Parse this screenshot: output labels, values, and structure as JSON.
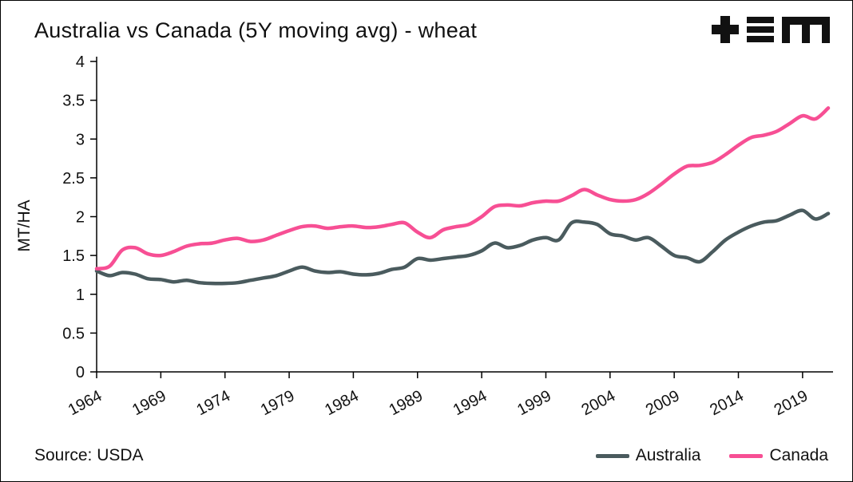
{
  "title": "Australia vs Canada (5Y moving avg) - wheat",
  "source": "Source: USDA",
  "logo_name": "tem-logo",
  "colors": {
    "australia_line": "#4a5b5e",
    "canada_line": "#f74f94",
    "axis": "#000000",
    "background": "#ffffff",
    "logo": "#111111"
  },
  "chart_data": {
    "type": "line",
    "title": "Australia vs Canada (5Y moving avg) - wheat",
    "xlabel": "",
    "ylabel": "MT/HA",
    "ylim": [
      0,
      4
    ],
    "grid": false,
    "legend_position": "bottom-right",
    "x": [
      1964,
      1965,
      1966,
      1967,
      1968,
      1969,
      1970,
      1971,
      1972,
      1973,
      1974,
      1975,
      1976,
      1977,
      1978,
      1979,
      1980,
      1981,
      1982,
      1983,
      1984,
      1985,
      1986,
      1987,
      1988,
      1989,
      1990,
      1991,
      1992,
      1993,
      1994,
      1995,
      1996,
      1997,
      1998,
      1999,
      2000,
      2001,
      2002,
      2003,
      2004,
      2005,
      2006,
      2007,
      2008,
      2009,
      2010,
      2011,
      2012,
      2013,
      2014,
      2015,
      2016,
      2017,
      2018,
      2019,
      2020,
      2021
    ],
    "x_ticks": [
      1964,
      1969,
      1974,
      1979,
      1984,
      1989,
      1994,
      1999,
      2004,
      2009,
      2014,
      2019
    ],
    "y_ticks": [
      0,
      0.5,
      1,
      1.5,
      2,
      2.5,
      3,
      3.5,
      4
    ],
    "series": [
      {
        "name": "Australia",
        "color": "#4a5b5e",
        "values": [
          1.3,
          1.24,
          1.28,
          1.26,
          1.2,
          1.19,
          1.16,
          1.18,
          1.15,
          1.14,
          1.14,
          1.15,
          1.18,
          1.21,
          1.24,
          1.3,
          1.35,
          1.3,
          1.28,
          1.29,
          1.26,
          1.25,
          1.27,
          1.32,
          1.35,
          1.46,
          1.44,
          1.46,
          1.48,
          1.5,
          1.56,
          1.66,
          1.6,
          1.63,
          1.7,
          1.73,
          1.7,
          1.92,
          1.93,
          1.9,
          1.78,
          1.75,
          1.7,
          1.73,
          1.62,
          1.5,
          1.47,
          1.42,
          1.55,
          1.7,
          1.8,
          1.88,
          1.93,
          1.95,
          2.02,
          2.08,
          1.97,
          2.04
        ]
      },
      {
        "name": "Canada",
        "color": "#f74f94",
        "values": [
          1.33,
          1.36,
          1.57,
          1.6,
          1.52,
          1.5,
          1.55,
          1.62,
          1.65,
          1.66,
          1.7,
          1.72,
          1.68,
          1.7,
          1.76,
          1.82,
          1.87,
          1.88,
          1.85,
          1.87,
          1.88,
          1.86,
          1.87,
          1.9,
          1.92,
          1.8,
          1.73,
          1.83,
          1.87,
          1.9,
          2.0,
          2.13,
          2.15,
          2.14,
          2.18,
          2.2,
          2.2,
          2.27,
          2.35,
          2.28,
          2.22,
          2.2,
          2.22,
          2.3,
          2.42,
          2.55,
          2.65,
          2.66,
          2.7,
          2.8,
          2.92,
          3.02,
          3.05,
          3.1,
          3.2,
          3.3,
          3.26,
          3.4
        ]
      }
    ]
  }
}
